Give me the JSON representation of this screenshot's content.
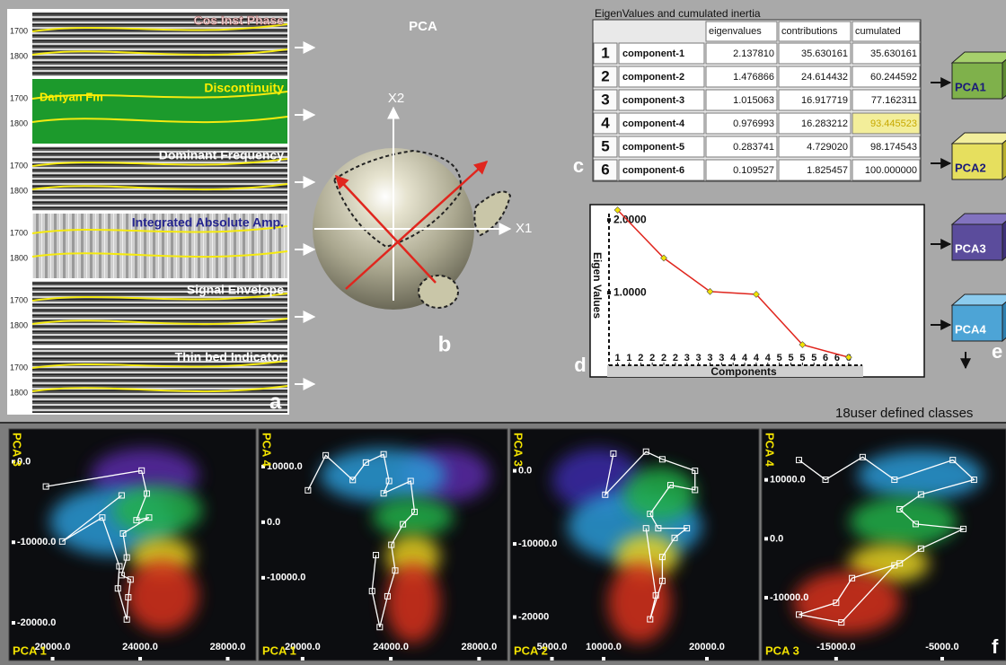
{
  "panel_a": {
    "label": "a",
    "strips": [
      {
        "title": "Cos Inst Phase",
        "depths": [
          "1700",
          "1800"
        ]
      },
      {
        "title": "Discontinuity",
        "note": "Dariyan Fm",
        "depths": [
          "1700",
          "1800"
        ]
      },
      {
        "title": "Dominant Frequency",
        "depths": [
          "1700",
          "1800"
        ]
      },
      {
        "title": "Integrated Absolute Amp.",
        "depths": [
          "1700",
          "1800"
        ]
      },
      {
        "title": "Signal Envelope",
        "depths": [
          "1700",
          "1800"
        ]
      },
      {
        "title": "Thin bed Indicator",
        "depths": [
          "1700",
          "1800"
        ]
      }
    ]
  },
  "panel_b": {
    "title": "PCA",
    "axis_x": "X1",
    "axis_y": "X2",
    "label": "b"
  },
  "panel_c": {
    "title": "EigenValues and cumulated inertia",
    "label": "c",
    "header": [
      "eigenvalues",
      "contributions",
      "cumulated"
    ],
    "rows": [
      [
        "1",
        "component-1",
        "2.137810",
        "35.630161",
        "35.630161"
      ],
      [
        "2",
        "component-2",
        "1.476866",
        "24.614432",
        "60.244592"
      ],
      [
        "3",
        "component-3",
        "1.015063",
        "16.917719",
        "77.162311"
      ],
      [
        "4",
        "component-4",
        "0.976993",
        "16.283212",
        "93.445523"
      ],
      [
        "5",
        "component-5",
        "0.283741",
        "4.729020",
        "98.174543"
      ],
      [
        "6",
        "component-6",
        "0.109527",
        "1.825457",
        "100.000000"
      ]
    ]
  },
  "panel_e": {
    "label": "e",
    "cubes": [
      "PCA1",
      "PCA2",
      "PCA3",
      "PCA4"
    ],
    "caption": "18user defined classes"
  },
  "panel_f": {
    "label": "f"
  },
  "chart_data": [
    {
      "type": "line",
      "label": "d",
      "xlabel": "Components",
      "ylabel": "Eigen Values",
      "x": [
        1,
        2,
        3,
        4,
        5,
        6
      ],
      "values": [
        2.13781,
        1.476866,
        1.015063,
        0.976993,
        0.283741,
        0.109527
      ],
      "color": "#e0261e",
      "marker_color": "#f2e200",
      "xlim": [
        0.6,
        6.8
      ],
      "ylim": [
        0,
        2.2
      ],
      "xticks": [
        {
          "value": 1,
          "label": "1"
        },
        {
          "value": 1.25,
          "label": "1"
        },
        {
          "value": 1.5,
          "label": "2"
        },
        {
          "value": 1.75,
          "label": "2"
        },
        {
          "value": 2,
          "label": "2"
        },
        {
          "value": 2.25,
          "label": "2"
        },
        {
          "value": 2.5,
          "label": "3"
        },
        {
          "value": 2.75,
          "label": "3"
        },
        {
          "value": 3,
          "label": "3"
        },
        {
          "value": 3.25,
          "label": "3"
        },
        {
          "value": 3.5,
          "label": "4"
        },
        {
          "value": 3.75,
          "label": "4"
        },
        {
          "value": 4,
          "label": "4"
        },
        {
          "value": 4.25,
          "label": "4"
        },
        {
          "value": 4.5,
          "label": "5"
        },
        {
          "value": 4.75,
          "label": "5"
        },
        {
          "value": 5,
          "label": "5"
        },
        {
          "value": 5.25,
          "label": "5"
        },
        {
          "value": 5.5,
          "label": "6"
        },
        {
          "value": 5.75,
          "label": "6"
        },
        {
          "value": 6,
          "label": "6"
        }
      ],
      "yticks": [
        {
          "value": 2,
          "label": "2.0000"
        },
        {
          "value": 1,
          "label": "1.0000"
        }
      ]
    },
    {
      "type": "scatter",
      "xlabel": "PCA 1",
      "ylabel": "PCA 3",
      "color": "#ffffff",
      "x": [
        19695,
        24068,
        24305,
        23831,
        24407,
        23220,
        23390,
        23153,
        23560,
        23458,
        23390,
        22983,
        23051,
        22271,
        20441,
        23153
      ],
      "values": [
        -3080,
        -1100,
        -3960,
        -7260,
        -6930,
        -8910,
        -11880,
        -14080,
        -14630,
        -16830,
        -19580,
        -15730,
        -12980,
        -6930,
        -9900,
        -4180
      ],
      "xlim": [
        18500,
        28800
      ],
      "ylim": [
        -22000,
        2500
      ],
      "xticks": [
        {
          "value": 20000,
          "label": "20000.0"
        },
        {
          "value": 24000,
          "label": "24000.0"
        },
        {
          "value": 28000,
          "label": "28000.0"
        }
      ],
      "yticks": [
        {
          "value": 0,
          "label": "0.0"
        },
        {
          "value": -10000,
          "label": "-10000.0"
        },
        {
          "value": -20000,
          "label": "-20000.0"
        }
      ]
    },
    {
      "type": "scatter",
      "xlabel": "PCA 1",
      "ylabel": "PCA 4",
      "color": "#ffffff",
      "x": [
        20245,
        21050,
        22275,
        22870,
        23675,
        23920,
        23675,
        24900,
        25075,
        24550,
        24025,
        24200,
        23850,
        23500,
        23150,
        23325
      ],
      "values": [
        5735,
        12025,
        7585,
        10730,
        12210,
        7400,
        5180,
        7400,
        1850,
        -370,
        -4070,
        -8695,
        -13320,
        -18870,
        -12395,
        -5920
      ],
      "xlim": [
        18500,
        28800
      ],
      "ylim": [
        -21000,
        14500
      ],
      "xticks": [
        {
          "value": 20000,
          "label": "20000.0"
        },
        {
          "value": 24000,
          "label": "24000.0"
        },
        {
          "value": 28000,
          "label": "28000.0"
        }
      ],
      "yticks": [
        {
          "value": 10000,
          "label": "10000.0"
        },
        {
          "value": 0,
          "label": "0.0"
        },
        {
          "value": -10000,
          "label": "-10000.0"
        }
      ]
    },
    {
      "type": "scatter",
      "xlabel": "PCA 2",
      "ylabel": "PCA 3",
      "color": "#ffffff",
      "x": [
        10948,
        10158,
        14108,
        15688,
        18848,
        18848,
        16478,
        14503,
        15293,
        18058,
        16873,
        15688,
        15688,
        14503,
        15056,
        14108
      ],
      "values": [
        2358,
        -3275,
        2620,
        1572,
        0,
        -2620,
        -1965,
        -5895,
        -7860,
        -7860,
        -9170,
        -11790,
        -15065,
        -20305,
        -17030,
        -7860
      ],
      "xlim": [
        2000,
        24000
      ],
      "ylim": [
        -23000,
        4000
      ],
      "xticks": [
        {
          "value": 5000,
          "label": "5000.0"
        },
        {
          "value": 10000,
          "label": "10000.0"
        },
        {
          "value": 20000,
          "label": "20000.0"
        }
      ],
      "yticks": [
        {
          "value": 0,
          "label": "0.0"
        },
        {
          "value": -10000,
          "label": "-10000.0"
        },
        -20000
      ]
    },
    {
      "type": "scatter",
      "xlabel": "PCA 3",
      "ylabel": "PCA 4",
      "color": "#ffffff",
      "x": [
        -18500,
        -16000,
        -12500,
        -9500,
        -4000,
        -2000,
        -7000,
        -9000,
        -7500,
        -3000,
        -7000,
        -9000,
        -13500,
        -15000,
        -18500,
        -14500,
        -9500
      ],
      "values": [
        13360,
        10020,
        13861,
        10020,
        13360,
        10020,
        7515,
        5010,
        2505,
        1670,
        -1670,
        -4175,
        -6680,
        -10855,
        -12859,
        -14195,
        -4509
      ],
      "xlim": [
        -21000,
        0
      ],
      "ylim": [
        -17000,
        16500
      ],
      "xticks": [
        {
          "value": -15000,
          "label": "-15000.0"
        },
        {
          "value": -5000,
          "label": "-5000.0"
        }
      ],
      "yticks": [
        {
          "value": 10000,
          "label": "10000.0"
        },
        {
          "value": 0,
          "label": "0.0"
        },
        {
          "value": -10000,
          "label": "-10000.0"
        }
      ]
    }
  ]
}
